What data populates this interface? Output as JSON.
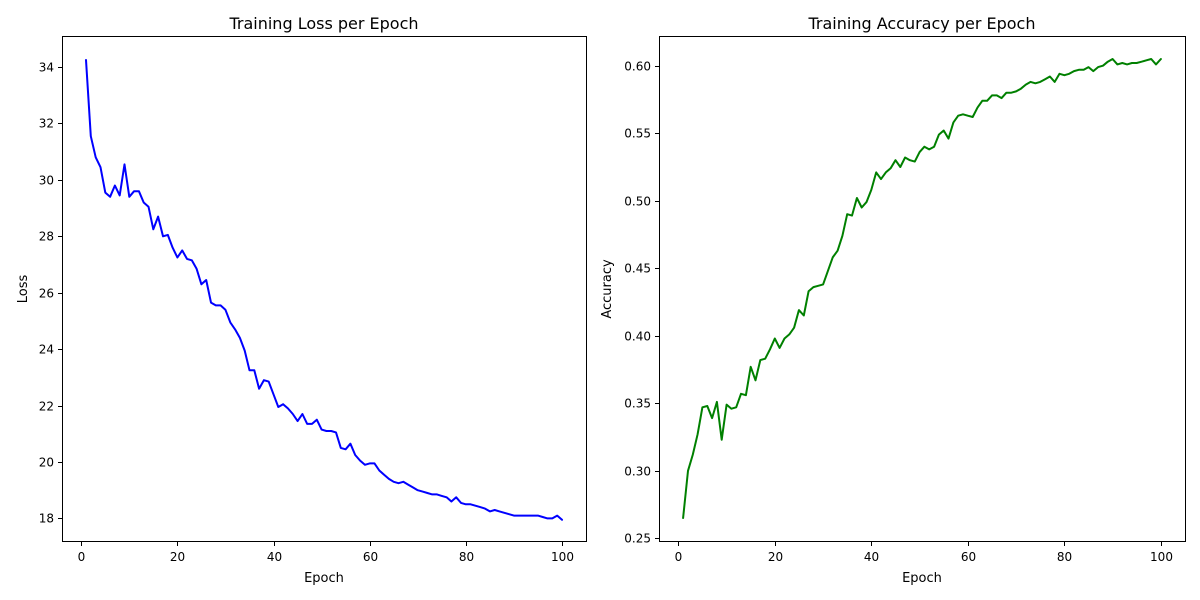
{
  "chart_data": [
    {
      "type": "line",
      "title": "Training Loss per Epoch",
      "xlabel": "Epoch",
      "ylabel": "Loss",
      "xlim": [
        -4,
        105
      ],
      "ylim": [
        17.2,
        35.1
      ],
      "xticks": [
        0,
        20,
        40,
        60,
        80,
        100
      ],
      "yticks": [
        18,
        20,
        22,
        24,
        26,
        28,
        30,
        32,
        34
      ],
      "ytick_decimals": 0,
      "grid": false,
      "color": "#0000ff",
      "x": [
        1,
        2,
        3,
        4,
        5,
        6,
        7,
        8,
        9,
        10,
        11,
        12,
        13,
        14,
        15,
        16,
        17,
        18,
        19,
        20,
        21,
        22,
        23,
        24,
        25,
        26,
        27,
        28,
        29,
        30,
        31,
        32,
        33,
        34,
        35,
        36,
        37,
        38,
        39,
        40,
        41,
        42,
        43,
        44,
        45,
        46,
        47,
        48,
        49,
        50,
        51,
        52,
        53,
        54,
        55,
        56,
        57,
        58,
        59,
        60,
        61,
        62,
        63,
        64,
        65,
        66,
        67,
        68,
        69,
        70,
        71,
        72,
        73,
        74,
        75,
        76,
        77,
        78,
        79,
        80,
        81,
        82,
        83,
        84,
        85,
        86,
        87,
        88,
        89,
        90,
        91,
        92,
        93,
        94,
        95,
        96,
        97,
        98,
        99,
        100
      ],
      "series": [
        {
          "values": [
            34.25,
            31.55,
            30.8,
            30.45,
            29.55,
            29.4,
            29.8,
            29.45,
            30.55,
            29.4,
            29.6,
            29.6,
            29.2,
            29.05,
            28.25,
            28.7,
            28.0,
            28.05,
            27.6,
            27.25,
            27.5,
            27.2,
            27.15,
            26.85,
            26.3,
            26.45,
            25.65,
            25.55,
            25.55,
            25.4,
            24.95,
            24.7,
            24.4,
            23.95,
            23.25,
            23.25,
            22.6,
            22.9,
            22.85,
            22.4,
            21.95,
            22.05,
            21.9,
            21.7,
            21.45,
            21.7,
            21.35,
            21.35,
            21.5,
            21.15,
            21.1,
            21.1,
            21.05,
            20.5,
            20.45,
            20.65,
            20.25,
            20.05,
            19.9,
            19.95,
            19.95,
            19.7,
            19.55,
            19.4,
            19.3,
            19.25,
            19.3,
            19.2,
            19.1,
            19.0,
            18.95,
            18.9,
            18.85,
            18.85,
            18.8,
            18.75,
            18.6,
            18.75,
            18.55,
            18.5,
            18.5,
            18.45,
            18.4,
            18.35,
            18.25,
            18.3,
            18.25,
            18.2,
            18.15,
            18.1,
            18.1,
            18.1,
            18.1,
            18.1,
            18.1,
            18.05,
            18.0,
            18.0,
            18.1,
            17.95
          ]
        }
      ]
    },
    {
      "type": "line",
      "title": "Training Accuracy per Epoch",
      "xlabel": "Epoch",
      "ylabel": "Accuracy",
      "xlim": [
        -4,
        105
      ],
      "ylim": [
        0.248,
        0.622
      ],
      "xticks": [
        0,
        20,
        40,
        60,
        80,
        100
      ],
      "yticks": [
        0.25,
        0.3,
        0.35,
        0.4,
        0.45,
        0.5,
        0.55,
        0.6
      ],
      "ytick_decimals": 2,
      "grid": false,
      "color": "#008000",
      "x": [
        1,
        2,
        3,
        4,
        5,
        6,
        7,
        8,
        9,
        10,
        11,
        12,
        13,
        14,
        15,
        16,
        17,
        18,
        19,
        20,
        21,
        22,
        23,
        24,
        25,
        26,
        27,
        28,
        29,
        30,
        31,
        32,
        33,
        34,
        35,
        36,
        37,
        38,
        39,
        40,
        41,
        42,
        43,
        44,
        45,
        46,
        47,
        48,
        49,
        50,
        51,
        52,
        53,
        54,
        55,
        56,
        57,
        58,
        59,
        60,
        61,
        62,
        63,
        64,
        65,
        66,
        67,
        68,
        69,
        70,
        71,
        72,
        73,
        74,
        75,
        76,
        77,
        78,
        79,
        80,
        81,
        82,
        83,
        84,
        85,
        86,
        87,
        88,
        89,
        90,
        91,
        92,
        93,
        94,
        95,
        96,
        97,
        98,
        99,
        100
      ],
      "series": [
        {
          "values": [
            0.265,
            0.3,
            0.312,
            0.327,
            0.347,
            0.348,
            0.339,
            0.351,
            0.323,
            0.349,
            0.346,
            0.347,
            0.357,
            0.356,
            0.377,
            0.367,
            0.382,
            0.383,
            0.39,
            0.398,
            0.391,
            0.398,
            0.401,
            0.406,
            0.419,
            0.415,
            0.433,
            0.436,
            0.437,
            0.438,
            0.448,
            0.458,
            0.463,
            0.474,
            0.49,
            0.489,
            0.502,
            0.495,
            0.499,
            0.508,
            0.521,
            0.516,
            0.521,
            0.524,
            0.53,
            0.525,
            0.532,
            0.53,
            0.529,
            0.536,
            0.54,
            0.538,
            0.54,
            0.549,
            0.552,
            0.546,
            0.558,
            0.563,
            0.564,
            0.563,
            0.562,
            0.569,
            0.574,
            0.574,
            0.578,
            0.578,
            0.576,
            0.58,
            0.58,
            0.581,
            0.583,
            0.586,
            0.588,
            0.587,
            0.588,
            0.59,
            0.592,
            0.588,
            0.594,
            0.593,
            0.594,
            0.596,
            0.597,
            0.597,
            0.599,
            0.596,
            0.599,
            0.6,
            0.603,
            0.605,
            0.601,
            0.602,
            0.601,
            0.602,
            0.602,
            0.603,
            0.604,
            0.605,
            0.601,
            0.605
          ]
        }
      ]
    }
  ]
}
